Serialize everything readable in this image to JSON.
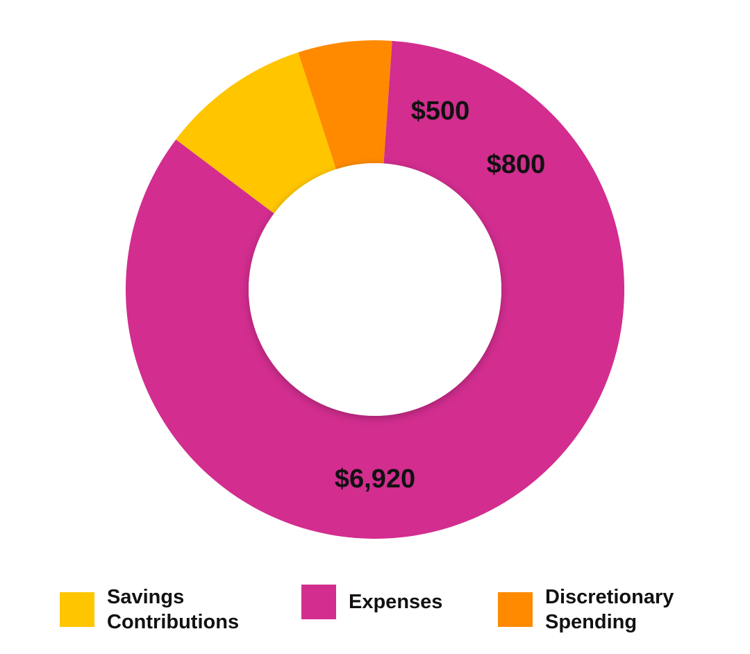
{
  "chart_data": {
    "type": "pie",
    "donut": true,
    "legend_position": "bottom",
    "slices": [
      {
        "name": "Expenses",
        "value": 6920,
        "label": "$6,920",
        "color": "#D22D8F"
      },
      {
        "name": "Discretionary Spending",
        "value": 500,
        "label": "$500",
        "color": "#FF8A00"
      },
      {
        "name": "Savings Contributions",
        "value": 800,
        "label": "$800",
        "color": "#FFC600"
      }
    ],
    "legend": [
      {
        "label": "Savings\nContributions",
        "color": "#FFC600"
      },
      {
        "label": "Expenses",
        "color": "#D22D8F"
      },
      {
        "label": "Discretionary\nSpending",
        "color": "#FF8A00"
      }
    ]
  }
}
